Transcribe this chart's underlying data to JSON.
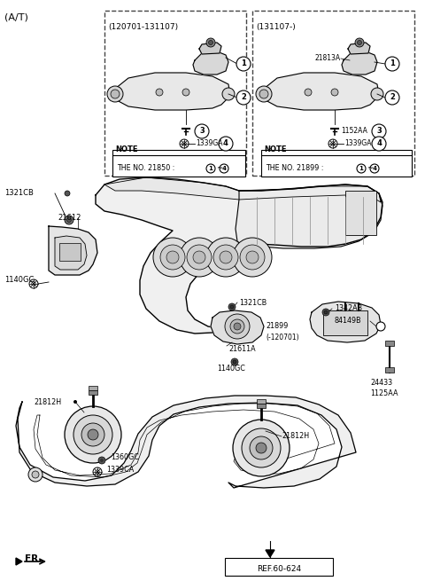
{
  "fig_width": 4.8,
  "fig_height": 6.55,
  "dpi": 100,
  "bg_color": "#ffffff",
  "title": "(A/T)",
  "box1_label": "(120701-131107)",
  "box2_label": "(131107-)",
  "note1": "THE NO. 21850 :",
  "note2": "THE NO. 21899 :",
  "ref_text": "REF.60-624",
  "fr_text": "FR."
}
